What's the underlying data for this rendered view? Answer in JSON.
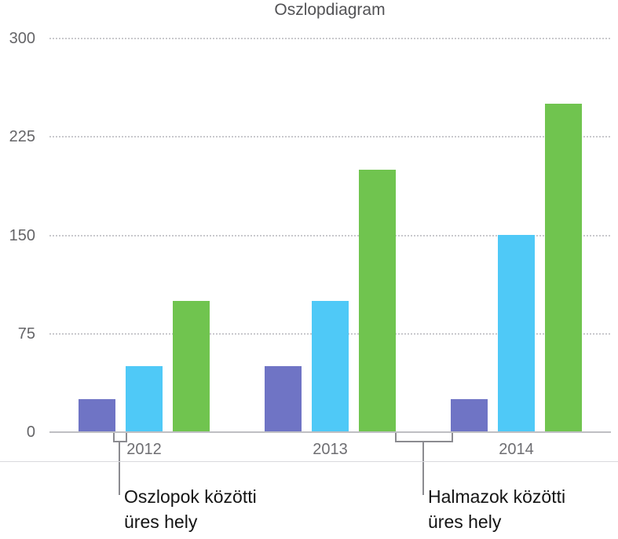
{
  "chart_data": {
    "type": "bar",
    "title": "Oszlopdiagram",
    "categories": [
      "2012",
      "2013",
      "2014"
    ],
    "series": [
      {
        "color": "#6F74C5",
        "values": [
          25,
          50,
          25
        ]
      },
      {
        "color": "#4FC9F7",
        "values": [
          50,
          100,
          150
        ]
      },
      {
        "color": "#70C44F",
        "values": [
          100,
          200,
          250
        ]
      }
    ],
    "ylim": [
      0,
      300
    ],
    "yticks": [
      0,
      75,
      150,
      225,
      300
    ],
    "grid": "horizontal dotted",
    "legend_position": "none"
  },
  "annotations": {
    "columns_gap": {
      "line1": "Oszlopok közötti",
      "line2": "üres hely"
    },
    "clusters_gap": {
      "line1": "Halmazok közötti",
      "line2": "üres hely"
    }
  },
  "colors": {
    "series_purple": "#6F74C5",
    "series_cyan": "#4FC9F7",
    "series_green": "#70C44F",
    "gridline": "#c9c9cd",
    "axis_line": "#bfbfc3",
    "callout_line": "#8b8b90",
    "annotation_text": "#141414"
  }
}
